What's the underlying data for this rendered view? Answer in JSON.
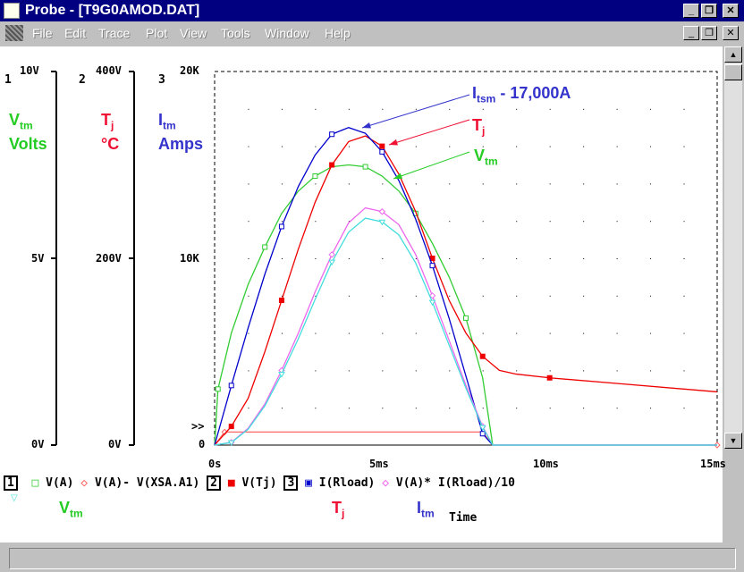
{
  "window": {
    "title": "Probe - [T9G0AMOD.DAT]",
    "menu": [
      "File",
      "Edit",
      "Trace",
      "Plot",
      "View",
      "Tools",
      "Window",
      "Help"
    ]
  },
  "axes": {
    "axis1": {
      "id": "1",
      "ticks": [
        "10V",
        "5V",
        "0V"
      ],
      "range": [
        0,
        10
      ],
      "label_main": "V",
      "label_sub": "tm",
      "label_unit": "Volts",
      "color": "#22cc22"
    },
    "axis2": {
      "id": "2",
      "ticks": [
        "400V",
        "200V",
        "0V"
      ],
      "range": [
        0,
        400
      ],
      "label_main": "T",
      "label_sub": "j",
      "label_unit": "°C",
      "color": "#ee1133"
    },
    "axis3": {
      "id": "3",
      "ticks": [
        "20K",
        "10K",
        "0"
      ],
      "range": [
        0,
        20000
      ],
      "label_main": "I",
      "label_sub": "tm",
      "label_unit": "Amps",
      "color": "#3333cc"
    },
    "x_ticks": [
      "0s",
      "5ms",
      "10ms",
      "15ms"
    ],
    "x_range_ms": [
      0,
      15
    ],
    "x_label": "Time"
  },
  "marker_text": ">>",
  "chart_data": {
    "type": "line",
    "xlabel": "Time",
    "xlim": [
      0,
      15
    ],
    "series": [
      {
        "name": "V(A)",
        "axis": 1,
        "color": "#33cc33",
        "marker": "square-open",
        "x": [
          0,
          0.1,
          0.5,
          1,
          1.5,
          2,
          2.5,
          3,
          3.5,
          4,
          4.5,
          5,
          5.5,
          6,
          6.5,
          7,
          7.5,
          8,
          8.3
        ],
        "y": [
          0,
          1.5,
          3,
          4.3,
          5.3,
          6.2,
          6.8,
          7.2,
          7.45,
          7.5,
          7.45,
          7.2,
          6.8,
          6.2,
          5.4,
          4.5,
          3.4,
          1.8,
          0
        ]
      },
      {
        "name": "V(A)- V(XSA.A1)",
        "axis": 1,
        "color": "#ff6666",
        "marker": "diamond-open",
        "x": [
          0,
          0.3,
          8,
          8.3,
          15
        ],
        "y": [
          0,
          0.35,
          0.35,
          0,
          0
        ]
      },
      {
        "name": "V(Tj)",
        "axis": 2,
        "color": "#ee0000",
        "marker": "square-filled",
        "x": [
          0,
          0.5,
          1,
          1.5,
          2,
          2.5,
          3,
          3.5,
          4,
          4.5,
          5,
          5.5,
          6,
          6.5,
          7,
          7.5,
          8,
          8.5,
          9,
          10,
          12,
          15
        ],
        "y": [
          0,
          20,
          50,
          100,
          155,
          210,
          260,
          300,
          325,
          331,
          320,
          290,
          250,
          200,
          155,
          120,
          95,
          80,
          76,
          72,
          66,
          57
        ]
      },
      {
        "name": "I(Rload)",
        "axis": 3,
        "color": "#0000cc",
        "marker": "square-dot",
        "x": [
          0,
          0.5,
          1,
          1.5,
          2,
          2.5,
          3,
          3.5,
          4,
          4.5,
          5,
          5.5,
          6,
          6.5,
          7,
          7.5,
          8,
          8.3,
          15
        ],
        "y": [
          0,
          3190,
          6270,
          9150,
          11700,
          13850,
          15530,
          16640,
          17000,
          16690,
          15700,
          14160,
          12100,
          9610,
          6780,
          3700,
          610,
          0,
          0
        ]
      },
      {
        "name": "V(A)* I(Rload)/10",
        "axis": 3,
        "color": "#ee66ee",
        "marker": "diamond-open",
        "x": [
          0,
          0.5,
          1,
          1.5,
          2,
          2.5,
          3,
          3.5,
          4,
          4.5,
          5,
          5.5,
          6,
          6.5,
          7,
          7.5,
          8,
          8.3,
          15
        ],
        "y": [
          0,
          150,
          900,
          2200,
          4000,
          6000,
          8200,
          10200,
          11900,
          12700,
          12500,
          11800,
          10200,
          8000,
          5600,
          3200,
          1000,
          0,
          0
        ]
      },
      {
        "name": "",
        "axis": 3,
        "color": "#44dddd",
        "marker": "triangle-down",
        "x": [
          0,
          0.5,
          1,
          1.5,
          2,
          2.5,
          3,
          3.5,
          4,
          4.5,
          5,
          5.5,
          6,
          6.5,
          7,
          7.5,
          8,
          8.3,
          15
        ],
        "y": [
          0,
          140,
          850,
          2100,
          3800,
          5700,
          7800,
          9800,
          11400,
          12150,
          11950,
          11250,
          9750,
          7650,
          5350,
          3050,
          950,
          0,
          0
        ]
      }
    ],
    "annotations": [
      {
        "main": "I",
        "sub": "tsm",
        "tail": " - 17,000A",
        "color": "#3333cc"
      },
      {
        "main": "T",
        "sub": "j",
        "tail": "",
        "color": "#ee1133"
      },
      {
        "main": "V",
        "sub": "tm",
        "tail": "",
        "color": "#22cc22"
      }
    ]
  },
  "legend": {
    "box1": "1",
    "v_a": "V(A)",
    "v_diff": "V(A)- V(XSA.A1)",
    "box2": "2",
    "v_tj": "V(Tj)",
    "box3": "3",
    "i_rload": "I(Rload)",
    "power": "V(A)* I(Rload)/10"
  },
  "bottom_labels": {
    "vtm_main": "V",
    "vtm_sub": "tm",
    "tj_main": "T",
    "tj_sub": "j",
    "itm_main": "I",
    "itm_sub": "tm"
  }
}
